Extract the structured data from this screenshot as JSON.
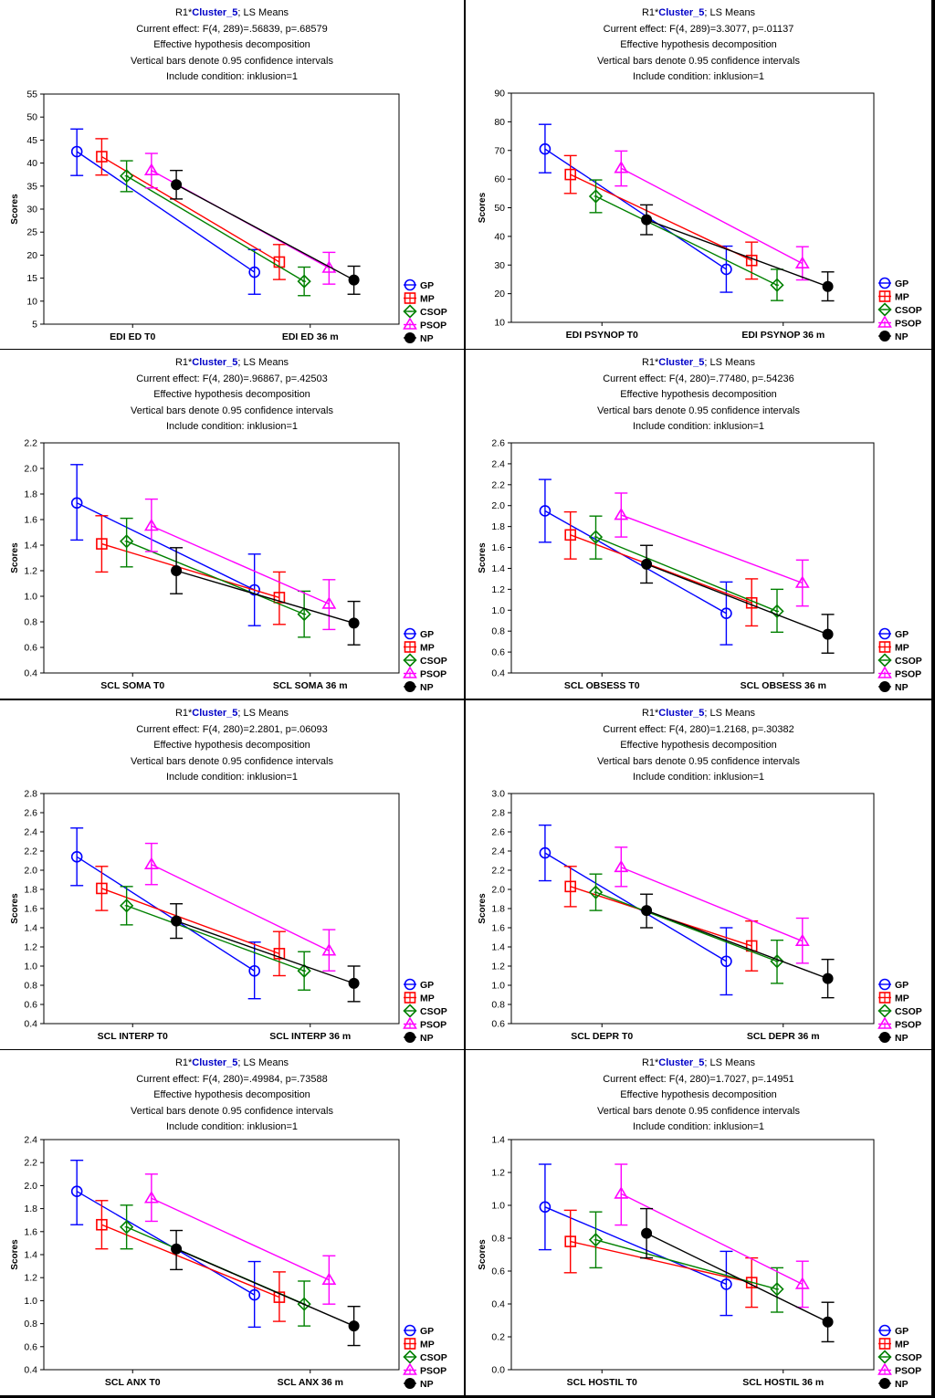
{
  "colors": {
    "GP": "#0000ff",
    "MP": "#ff0000",
    "CSOP": "#008000",
    "PSOP": "#ff00ff",
    "NP": "#000000",
    "title_cluster": "#0000c8"
  },
  "legend": [
    "GP",
    "MP",
    "CSOP",
    "PSOP",
    "NP"
  ],
  "marker_shapes": {
    "GP": "circle",
    "MP": "square",
    "CSOP": "diamond",
    "PSOP": "triangle",
    "NP": "filled-circle"
  },
  "chart_data": [
    {
      "type": "line",
      "title_prefix": "R1*",
      "title_cluster": "Cluster_5",
      "title_suffix": "; LS Means",
      "effect": "Current effect: F(4, 289)=.56839, p=.68579",
      "decomposition": "Effective hypothesis decomposition",
      "bars_note": "Vertical bars denote 0.95 confidence intervals",
      "include": "Include condition: inklusion=1",
      "ylabel": "Scores",
      "categories": [
        "EDI ED T0",
        "EDI ED 36 m"
      ],
      "ylim": [
        5,
        55
      ],
      "yticks": [
        "5",
        "10",
        "15",
        "20",
        "25",
        "30",
        "35",
        "40",
        "45",
        "50",
        "55"
      ],
      "grid": false,
      "legend_position": "right",
      "series": [
        {
          "name": "GP",
          "values": [
            42.5,
            16.3
          ],
          "ci_low": [
            37.3,
            11.5
          ],
          "ci_high": [
            47.4,
            21.2
          ]
        },
        {
          "name": "MP",
          "values": [
            41.4,
            18.5
          ],
          "ci_low": [
            37.4,
            14.7
          ],
          "ci_high": [
            45.3,
            22.3
          ]
        },
        {
          "name": "CSOP",
          "values": [
            37.2,
            14.3
          ],
          "ci_low": [
            33.8,
            11.2
          ],
          "ci_high": [
            40.5,
            17.4
          ]
        },
        {
          "name": "PSOP",
          "values": [
            38.4,
            17.2
          ],
          "ci_low": [
            34.6,
            13.7
          ],
          "ci_high": [
            42.1,
            20.6
          ]
        },
        {
          "name": "NP",
          "values": [
            35.3,
            14.6
          ],
          "ci_low": [
            32.2,
            11.5
          ],
          "ci_high": [
            38.4,
            17.6
          ]
        }
      ]
    },
    {
      "type": "line",
      "title_prefix": "R1*",
      "title_cluster": "Cluster_5",
      "title_suffix": "; LS Means",
      "effect": "Current effect: F(4, 289)=3.3077, p=.01137",
      "decomposition": "Effective hypothesis decomposition",
      "bars_note": "Vertical bars denote 0.95 confidence intervals",
      "include": "Include condition: inklusion=1",
      "ylabel": "Scores",
      "categories": [
        "EDI PSYNOP T0",
        "EDI PSYNOP 36 m"
      ],
      "ylim": [
        10,
        90
      ],
      "yticks": [
        "10",
        "20",
        "30",
        "40",
        "50",
        "60",
        "70",
        "80",
        "90"
      ],
      "grid": false,
      "legend_position": "right",
      "series": [
        {
          "name": "GP",
          "values": [
            70.5,
            28.5
          ],
          "ci_low": [
            62.2,
            20.5
          ],
          "ci_high": [
            79.1,
            36.6
          ]
        },
        {
          "name": "MP",
          "values": [
            61.6,
            31.6
          ],
          "ci_low": [
            55.0,
            25.1
          ],
          "ci_high": [
            68.2,
            38.0
          ]
        },
        {
          "name": "CSOP",
          "values": [
            54.0,
            23.0
          ],
          "ci_low": [
            48.3,
            17.6
          ],
          "ci_high": [
            59.7,
            28.5
          ]
        },
        {
          "name": "PSOP",
          "values": [
            63.8,
            30.5
          ],
          "ci_low": [
            57.6,
            24.8
          ],
          "ci_high": [
            69.8,
            36.4
          ]
        },
        {
          "name": "NP",
          "values": [
            45.8,
            22.5
          ],
          "ci_low": [
            40.6,
            17.5
          ],
          "ci_high": [
            51.0,
            27.6
          ]
        }
      ]
    },
    {
      "type": "line",
      "title_prefix": "R1*",
      "title_cluster": "Cluster_5",
      "title_suffix": "; LS Means",
      "effect": "Current effect: F(4, 280)=.96867, p=.42503",
      "decomposition": "Effective hypothesis decomposition",
      "bars_note": "Vertical bars denote 0.95 confidence intervals",
      "include": "Include condition: inklusion=1",
      "ylabel": "Scores",
      "categories": [
        "SCL SOMA T0",
        "SCL SOMA 36 m"
      ],
      "ylim": [
        0.4,
        2.2
      ],
      "yticks": [
        "0.4",
        "0.6",
        "0.8",
        "1.0",
        "1.2",
        "1.4",
        "1.6",
        "1.8",
        "2.0",
        "2.2"
      ],
      "grid": false,
      "legend_position": "right",
      "series": [
        {
          "name": "GP",
          "values": [
            1.73,
            1.05
          ],
          "ci_low": [
            1.44,
            0.77
          ],
          "ci_high": [
            2.03,
            1.33
          ]
        },
        {
          "name": "MP",
          "values": [
            1.41,
            0.99
          ],
          "ci_low": [
            1.19,
            0.78
          ],
          "ci_high": [
            1.63,
            1.19
          ]
        },
        {
          "name": "CSOP",
          "values": [
            1.43,
            0.86
          ],
          "ci_low": [
            1.23,
            0.68
          ],
          "ci_high": [
            1.61,
            1.04
          ]
        },
        {
          "name": "PSOP",
          "values": [
            1.55,
            0.94
          ],
          "ci_low": [
            1.35,
            0.74
          ],
          "ci_high": [
            1.76,
            1.13
          ]
        },
        {
          "name": "NP",
          "values": [
            1.2,
            0.79
          ],
          "ci_low": [
            1.02,
            0.62
          ],
          "ci_high": [
            1.38,
            0.96
          ]
        }
      ]
    },
    {
      "type": "line",
      "title_prefix": "R1*",
      "title_cluster": "Cluster_5",
      "title_suffix": "; LS Means",
      "effect": "Current effect: F(4, 280)=.77480, p=.54236",
      "decomposition": "Effective hypothesis decomposition",
      "bars_note": "Vertical bars denote 0.95 confidence intervals",
      "include": "Include condition: inklusion=1",
      "ylabel": "Scores",
      "categories": [
        "SCL OBSESS T0",
        "SCL OBSESS 36 m"
      ],
      "ylim": [
        0.4,
        2.6
      ],
      "yticks": [
        "0.4",
        "0.6",
        "0.8",
        "1.0",
        "1.2",
        "1.4",
        "1.6",
        "1.8",
        "2.0",
        "2.2",
        "2.4",
        "2.6"
      ],
      "grid": false,
      "legend_position": "right",
      "series": [
        {
          "name": "GP",
          "values": [
            1.95,
            0.97
          ],
          "ci_low": [
            1.65,
            0.67
          ],
          "ci_high": [
            2.25,
            1.27
          ]
        },
        {
          "name": "MP",
          "values": [
            1.72,
            1.07
          ],
          "ci_low": [
            1.49,
            0.85
          ],
          "ci_high": [
            1.94,
            1.3
          ]
        },
        {
          "name": "CSOP",
          "values": [
            1.7,
            0.99
          ],
          "ci_low": [
            1.49,
            0.79
          ],
          "ci_high": [
            1.9,
            1.2
          ]
        },
        {
          "name": "PSOP",
          "values": [
            1.91,
            1.26
          ],
          "ci_low": [
            1.7,
            1.04
          ],
          "ci_high": [
            2.12,
            1.48
          ]
        },
        {
          "name": "NP",
          "values": [
            1.44,
            0.77
          ],
          "ci_low": [
            1.26,
            0.59
          ],
          "ci_high": [
            1.62,
            0.96
          ]
        }
      ]
    },
    {
      "type": "line",
      "title_prefix": "R1*",
      "title_cluster": "Cluster_5",
      "title_suffix": "; LS Means",
      "effect": "Current effect: F(4, 280)=2.2801, p=.06093",
      "decomposition": "Effective hypothesis decomposition",
      "bars_note": "Vertical bars denote 0.95 confidence intervals",
      "include": "Include condition: inklusion=1",
      "ylabel": "Scores",
      "categories": [
        "SCL INTERP T0",
        "SCL INTERP 36 m"
      ],
      "ylim": [
        0.4,
        2.8
      ],
      "yticks": [
        "0.4",
        "0.6",
        "0.8",
        "1.0",
        "1.2",
        "1.4",
        "1.6",
        "1.8",
        "2.0",
        "2.2",
        "2.4",
        "2.6",
        "2.8"
      ],
      "grid": false,
      "legend_position": "right",
      "series": [
        {
          "name": "GP",
          "values": [
            2.14,
            0.95
          ],
          "ci_low": [
            1.84,
            0.66
          ],
          "ci_high": [
            2.44,
            1.25
          ]
        },
        {
          "name": "MP",
          "values": [
            1.81,
            1.13
          ],
          "ci_low": [
            1.58,
            0.9
          ],
          "ci_high": [
            2.04,
            1.36
          ]
        },
        {
          "name": "CSOP",
          "values": [
            1.63,
            0.95
          ],
          "ci_low": [
            1.43,
            0.75
          ],
          "ci_high": [
            1.83,
            1.15
          ]
        },
        {
          "name": "PSOP",
          "values": [
            2.06,
            1.16
          ],
          "ci_low": [
            1.85,
            0.95
          ],
          "ci_high": [
            2.28,
            1.38
          ]
        },
        {
          "name": "NP",
          "values": [
            1.47,
            0.82
          ],
          "ci_low": [
            1.29,
            0.63
          ],
          "ci_high": [
            1.65,
            1.0
          ]
        }
      ]
    },
    {
      "type": "line",
      "title_prefix": "R1*",
      "title_cluster": "Cluster_5",
      "title_suffix": "; LS Means",
      "effect": "Current effect: F(4, 280)=1.2168, p=.30382",
      "decomposition": "Effective hypothesis decomposition",
      "bars_note": "Vertical bars denote 0.95 confidence intervals",
      "include": "Include condition: inklusion=1",
      "ylabel": "Scores",
      "categories": [
        "SCL DEPR T0",
        "SCL DEPR 36 m"
      ],
      "ylim": [
        0.6,
        3.0
      ],
      "yticks": [
        "0.6",
        "0.8",
        "1.0",
        "1.2",
        "1.4",
        "1.6",
        "1.8",
        "2.0",
        "2.2",
        "2.4",
        "2.6",
        "2.8",
        "3.0"
      ],
      "grid": false,
      "legend_position": "right",
      "series": [
        {
          "name": "GP",
          "values": [
            2.38,
            1.25
          ],
          "ci_low": [
            2.09,
            0.9
          ],
          "ci_high": [
            2.67,
            1.6
          ]
        },
        {
          "name": "MP",
          "values": [
            2.03,
            1.41
          ],
          "ci_low": [
            1.82,
            1.15
          ],
          "ci_high": [
            2.24,
            1.67
          ]
        },
        {
          "name": "CSOP",
          "values": [
            1.97,
            1.25
          ],
          "ci_low": [
            1.78,
            1.02
          ],
          "ci_high": [
            2.16,
            1.47
          ]
        },
        {
          "name": "PSOP",
          "values": [
            2.23,
            1.46
          ],
          "ci_low": [
            2.03,
            1.23
          ],
          "ci_high": [
            2.44,
            1.7
          ]
        },
        {
          "name": "NP",
          "values": [
            1.78,
            1.07
          ],
          "ci_low": [
            1.6,
            0.87
          ],
          "ci_high": [
            1.95,
            1.27
          ]
        }
      ]
    },
    {
      "type": "line",
      "title_prefix": "R1*",
      "title_cluster": "Cluster_5",
      "title_suffix": "; LS Means",
      "effect": "Current effect: F(4, 280)=.49984, p=.73588",
      "decomposition": "Effective hypothesis decomposition",
      "bars_note": "Vertical bars denote 0.95 confidence intervals",
      "include": "Include condition: inklusion=1",
      "ylabel": "Scores",
      "categories": [
        "SCL ANX T0",
        "SCL ANX 36 m"
      ],
      "ylim": [
        0.4,
        2.4
      ],
      "yticks": [
        "0.4",
        "0.6",
        "0.8",
        "1.0",
        "1.2",
        "1.4",
        "1.6",
        "1.8",
        "2.0",
        "2.2",
        "2.4"
      ],
      "grid": false,
      "legend_position": "right",
      "series": [
        {
          "name": "GP",
          "values": [
            1.95,
            1.05
          ],
          "ci_low": [
            1.66,
            0.77
          ],
          "ci_high": [
            2.22,
            1.34
          ]
        },
        {
          "name": "MP",
          "values": [
            1.66,
            1.03
          ],
          "ci_low": [
            1.45,
            0.82
          ],
          "ci_high": [
            1.87,
            1.25
          ]
        },
        {
          "name": "CSOP",
          "values": [
            1.64,
            0.97
          ],
          "ci_low": [
            1.45,
            0.78
          ],
          "ci_high": [
            1.83,
            1.17
          ]
        },
        {
          "name": "PSOP",
          "values": [
            1.89,
            1.18
          ],
          "ci_low": [
            1.69,
            0.97
          ],
          "ci_high": [
            2.1,
            1.39
          ]
        },
        {
          "name": "NP",
          "values": [
            1.45,
            0.78
          ],
          "ci_low": [
            1.27,
            0.61
          ],
          "ci_high": [
            1.61,
            0.95
          ]
        }
      ]
    },
    {
      "type": "line",
      "title_prefix": "R1*",
      "title_cluster": "Cluster_5",
      "title_suffix": "; LS Means",
      "effect": "Current effect: F(4, 280)=1.7027, p=.14951",
      "decomposition": "Effective hypothesis decomposition",
      "bars_note": "Vertical bars denote 0.95 confidence intervals",
      "include": "Include condition: inklusion=1",
      "ylabel": "Scores",
      "categories": [
        "SCL HOSTIL T0",
        "SCL HOSTIL 36 m"
      ],
      "ylim": [
        0.0,
        1.4
      ],
      "yticks": [
        "0.0",
        "0.2",
        "0.4",
        "0.6",
        "0.8",
        "1.0",
        "1.2",
        "1.4"
      ],
      "grid": false,
      "legend_position": "right",
      "series": [
        {
          "name": "GP",
          "values": [
            0.99,
            0.52
          ],
          "ci_low": [
            0.73,
            0.33
          ],
          "ci_high": [
            1.25,
            0.72
          ]
        },
        {
          "name": "MP",
          "values": [
            0.78,
            0.53
          ],
          "ci_low": [
            0.59,
            0.38
          ],
          "ci_high": [
            0.97,
            0.68
          ]
        },
        {
          "name": "CSOP",
          "values": [
            0.79,
            0.49
          ],
          "ci_low": [
            0.62,
            0.35
          ],
          "ci_high": [
            0.96,
            0.62
          ]
        },
        {
          "name": "PSOP",
          "values": [
            1.07,
            0.52
          ],
          "ci_low": [
            0.88,
            0.38
          ],
          "ci_high": [
            1.25,
            0.66
          ]
        },
        {
          "name": "NP",
          "values": [
            0.83,
            0.29
          ],
          "ci_low": [
            0.68,
            0.17
          ],
          "ci_high": [
            0.98,
            0.41
          ]
        }
      ]
    }
  ]
}
